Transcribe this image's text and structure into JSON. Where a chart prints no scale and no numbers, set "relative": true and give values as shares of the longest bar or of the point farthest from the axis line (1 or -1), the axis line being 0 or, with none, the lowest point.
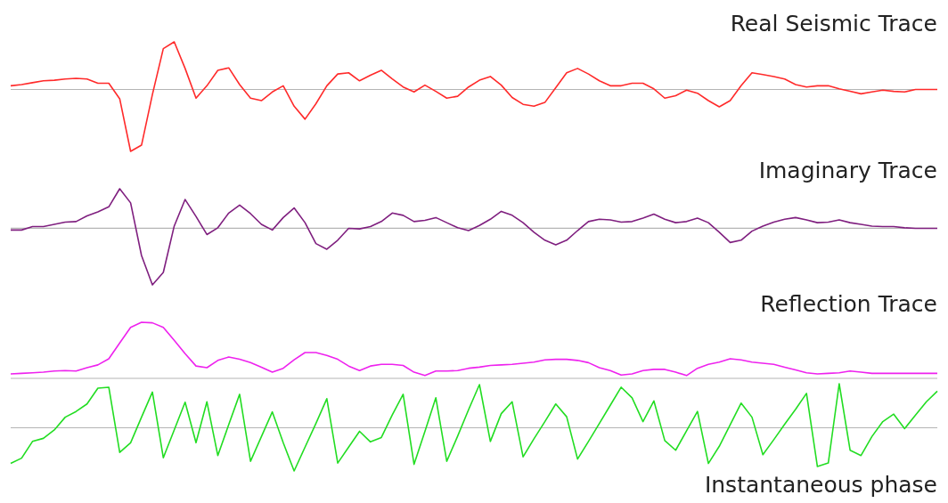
{
  "chart_data": [
    {
      "type": "line",
      "title": "Real Seismic Trace",
      "relative": true,
      "marker": "none",
      "categories": [
        null,
        null,
        null,
        null,
        null,
        null,
        null,
        null,
        null,
        null,
        null,
        null,
        null,
        null,
        null,
        null,
        null,
        null,
        null,
        null,
        null,
        null,
        null,
        null,
        null,
        null,
        null,
        null,
        null,
        null,
        null,
        null,
        null,
        null,
        null,
        null,
        null,
        null,
        null,
        null,
        null,
        null,
        null,
        null,
        null,
        null,
        null,
        null,
        null,
        null,
        null,
        null,
        null,
        null,
        null,
        null,
        null,
        null,
        null,
        null,
        null,
        null,
        null,
        null,
        null,
        null,
        null,
        null,
        null,
        null,
        null,
        null,
        null,
        null,
        null,
        null,
        null,
        null,
        null,
        null,
        null,
        null,
        null,
        null,
        null,
        null
      ],
      "series": [
        {
          "color": "#ff2a2a",
          "values": [
            0.06,
            0.08,
            0.11,
            0.14,
            0.15,
            0.17,
            0.18,
            0.17,
            0.1,
            0.1,
            -0.15,
            -1,
            -0.9,
            -0.08,
            0.66,
            0.77,
            0.34,
            -0.14,
            0.06,
            0.31,
            0.35,
            0.08,
            -0.14,
            -0.18,
            -0.04,
            0.06,
            -0.27,
            -0.48,
            -0.23,
            0.06,
            0.25,
            0.27,
            0.14,
            0.23,
            0.31,
            0.17,
            0.04,
            -0.04,
            0.07,
            -0.03,
            -0.14,
            -0.11,
            0.04,
            0.15,
            0.21,
            0.07,
            -0.13,
            -0.24,
            -0.27,
            -0.21,
            0.03,
            0.27,
            0.34,
            0.25,
            0.14,
            0.06,
            0.06,
            0.1,
            0.1,
            0.01,
            -0.14,
            -0.1,
            -0.01,
            -0.06,
            -0.18,
            -0.28,
            -0.18,
            0.06,
            0.27,
            0.24,
            0.21,
            0.17,
            0.08,
            0.04,
            0.06,
            0.06,
            0.01,
            -0.03,
            -0.07,
            -0.04,
            -0.01,
            -0.03,
            -0.04,
            0,
            0,
            0
          ]
        }
      ]
    },
    {
      "type": "line",
      "title": "Imaginary Trace",
      "relative": true,
      "marker": "none",
      "categories": [
        null,
        null,
        null,
        null,
        null,
        null,
        null,
        null,
        null,
        null,
        null,
        null,
        null,
        null,
        null,
        null,
        null,
        null,
        null,
        null,
        null,
        null,
        null,
        null,
        null,
        null,
        null,
        null,
        null,
        null,
        null,
        null,
        null,
        null,
        null,
        null,
        null,
        null,
        null,
        null,
        null,
        null,
        null,
        null,
        null,
        null,
        null,
        null,
        null,
        null,
        null,
        null,
        null,
        null,
        null,
        null,
        null,
        null,
        null,
        null,
        null,
        null,
        null,
        null,
        null,
        null,
        null,
        null,
        null,
        null,
        null,
        null,
        null,
        null,
        null,
        null,
        null,
        null,
        null,
        null,
        null,
        null,
        null,
        null,
        null,
        null
      ],
      "series": [
        {
          "color": "#7f1f7f",
          "values": [
            -0.03,
            -0.03,
            0.03,
            0.03,
            0.07,
            0.11,
            0.12,
            0.22,
            0.29,
            0.38,
            0.7,
            0.45,
            -0.48,
            -1,
            -0.78,
            0.04,
            0.51,
            0.21,
            -0.11,
            0.01,
            0.27,
            0.41,
            0.26,
            0.07,
            -0.03,
            0.19,
            0.36,
            0.1,
            -0.27,
            -0.37,
            -0.21,
            0,
            -0.01,
            0.03,
            0.12,
            0.27,
            0.23,
            0.12,
            0.14,
            0.19,
            0.1,
            0.01,
            -0.04,
            0.05,
            0.16,
            0.3,
            0.23,
            0.1,
            -0.07,
            -0.21,
            -0.29,
            -0.21,
            -0.04,
            0.12,
            0.16,
            0.15,
            0.11,
            0.12,
            0.18,
            0.25,
            0.16,
            0.1,
            0.12,
            0.18,
            0.1,
            -0.07,
            -0.25,
            -0.21,
            -0.05,
            0.04,
            0.11,
            0.16,
            0.19,
            0.15,
            0.1,
            0.11,
            0.15,
            0.1,
            0.07,
            0.04,
            0.03,
            0.03,
            0.01,
            0,
            0,
            0
          ]
        }
      ]
    },
    {
      "type": "line",
      "title": "Reflection Trace",
      "relative": true,
      "marker": "none",
      "categories": [
        null,
        null,
        null,
        null,
        null,
        null,
        null,
        null,
        null,
        null,
        null,
        null,
        null,
        null,
        null,
        null,
        null,
        null,
        null,
        null,
        null,
        null,
        null,
        null,
        null,
        null,
        null,
        null,
        null,
        null,
        null,
        null,
        null,
        null,
        null,
        null,
        null,
        null,
        null,
        null,
        null,
        null,
        null,
        null,
        null,
        null,
        null,
        null,
        null,
        null,
        null,
        null,
        null,
        null,
        null,
        null,
        null,
        null,
        null,
        null,
        null,
        null,
        null,
        null,
        null,
        null,
        null,
        null,
        null,
        null,
        null,
        null,
        null,
        null,
        null,
        null,
        null,
        null,
        null,
        null,
        null,
        null,
        null,
        null,
        null,
        null
      ],
      "series": [
        {
          "color": "#ee22ee",
          "values": [
            0.08,
            0.09,
            0.1,
            0.11,
            0.13,
            0.14,
            0.13,
            0.19,
            0.24,
            0.35,
            0.63,
            0.91,
            1,
            0.99,
            0.91,
            0.68,
            0.44,
            0.22,
            0.19,
            0.32,
            0.38,
            0.34,
            0.28,
            0.2,
            0.11,
            0.18,
            0.33,
            0.46,
            0.46,
            0.41,
            0.34,
            0.22,
            0.14,
            0.22,
            0.25,
            0.25,
            0.23,
            0.11,
            0.05,
            0.13,
            0.13,
            0.14,
            0.18,
            0.2,
            0.23,
            0.24,
            0.25,
            0.27,
            0.29,
            0.33,
            0.34,
            0.34,
            0.32,
            0.28,
            0.19,
            0.14,
            0.06,
            0.08,
            0.14,
            0.16,
            0.16,
            0.11,
            0.05,
            0.18,
            0.25,
            0.29,
            0.35,
            0.33,
            0.29,
            0.27,
            0.25,
            0.2,
            0.15,
            0.1,
            0.08,
            0.09,
            0.1,
            0.13,
            0.11,
            0.09,
            0.09,
            0.09,
            0.09,
            0.09,
            0.09,
            0.09
          ]
        }
      ]
    },
    {
      "type": "line",
      "title": "Instantaneous phase",
      "relative": true,
      "marker": "none",
      "categories": [
        null,
        null,
        null,
        null,
        null,
        null,
        null,
        null,
        null,
        null,
        null,
        null,
        null,
        null,
        null,
        null,
        null,
        null,
        null,
        null,
        null,
        null,
        null,
        null,
        null,
        null,
        null,
        null,
        null,
        null,
        null,
        null,
        null,
        null,
        null,
        null,
        null,
        null,
        null,
        null,
        null,
        null,
        null,
        null,
        null,
        null,
        null,
        null,
        null,
        null,
        null,
        null,
        null,
        null,
        null,
        null,
        null,
        null,
        null,
        null,
        null,
        null,
        null,
        null,
        null,
        null,
        null,
        null,
        null,
        null,
        null,
        null,
        null,
        null,
        null,
        null,
        null,
        null,
        null,
        null,
        null,
        null,
        null,
        null,
        null,
        null
      ],
      "series": [
        {
          "color": "#22dd22",
          "values": [
            -0.81,
            -0.69,
            -0.31,
            -0.24,
            -0.05,
            0.24,
            0.37,
            0.54,
            0.9,
            0.92,
            -0.56,
            -0.34,
            0.24,
            0.81,
            -0.68,
            -0.05,
            0.58,
            -0.34,
            0.59,
            -0.63,
            0.07,
            0.76,
            -0.76,
            -0.2,
            0.36,
            -0.34,
            -0.98,
            -0.44,
            0.1,
            0.66,
            -0.8,
            -0.44,
            -0.08,
            -0.32,
            -0.22,
            0.29,
            0.76,
            -0.83,
            -0.08,
            0.68,
            -0.76,
            -0.19,
            0.41,
            0.98,
            -0.31,
            0.32,
            0.59,
            -0.66,
            -0.25,
            0.14,
            0.54,
            0.25,
            -0.71,
            -0.31,
            0.1,
            0.51,
            0.92,
            0.68,
            0.14,
            0.61,
            -0.29,
            -0.51,
            -0.07,
            0.37,
            -0.81,
            -0.42,
            0.07,
            0.56,
            0.24,
            -0.61,
            -0.27,
            0.08,
            0.42,
            0.78,
            -0.88,
            -0.8,
            1,
            -0.51,
            -0.63,
            -0.2,
            0.14,
            0.31,
            -0.02,
            0.29,
            0.59,
            0.83
          ]
        }
      ]
    }
  ]
}
